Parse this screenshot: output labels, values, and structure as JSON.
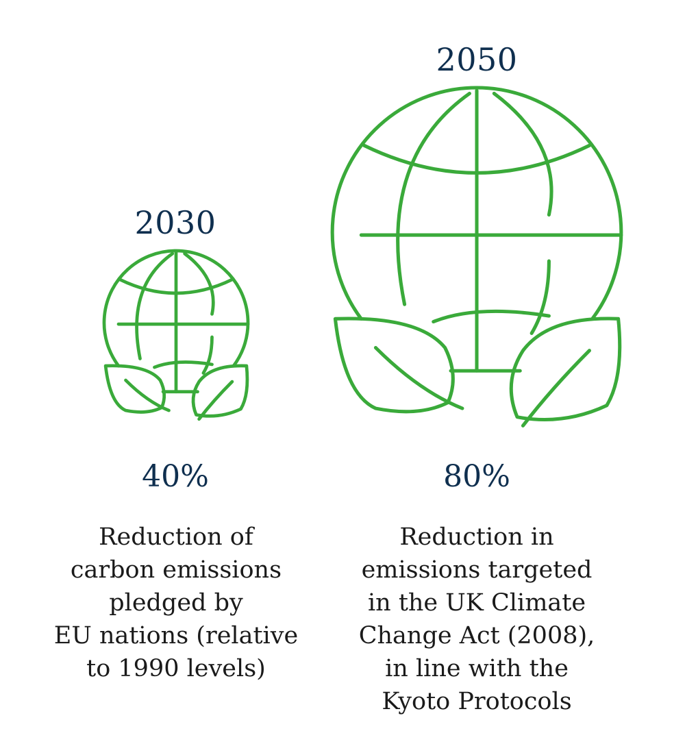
{
  "items": [
    {
      "year": "2030",
      "percent": "40%",
      "description_lines": [
        "Reduction of",
        "carbon emissions",
        "pledged by",
        "EU nations (relative",
        "to 1990 levels)"
      ]
    },
    {
      "year": "2050",
      "percent": "80%",
      "description_lines": [
        "Reduction in",
        "emissions targeted",
        "in the UK Climate",
        "Change Act (2008),",
        "in line with the",
        "Kyoto Protocols"
      ]
    }
  ],
  "colors": {
    "icon_stroke": "#3aaa3a",
    "heading_text": "#0f2f4f",
    "body_text": "#1a1a1a"
  },
  "icons": [
    "globe-with-leaves-icon",
    "globe-with-leaves-icon"
  ]
}
